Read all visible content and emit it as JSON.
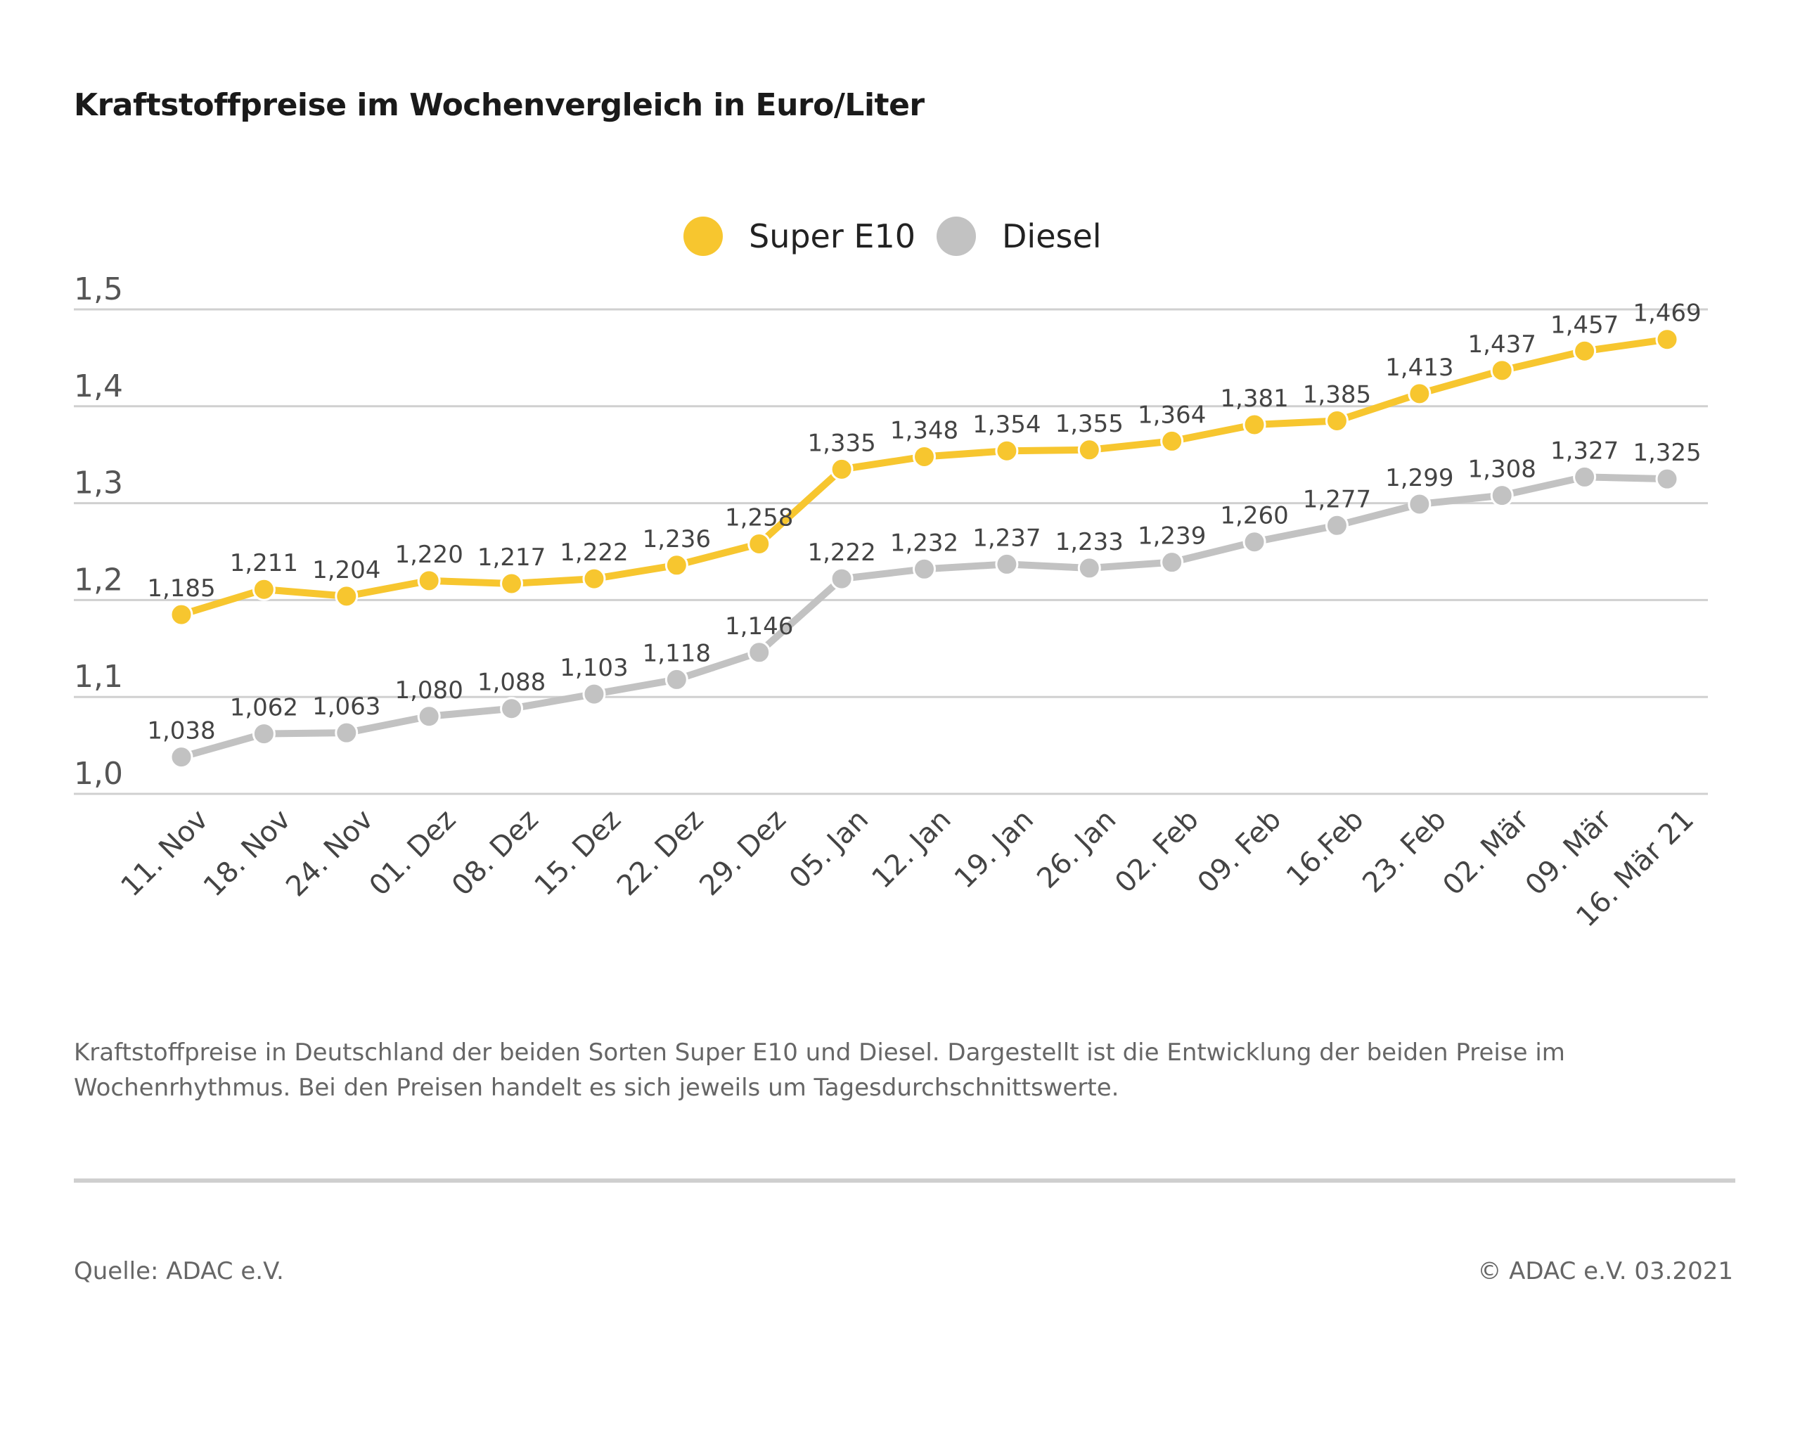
{
  "chart_data": {
    "type": "line",
    "title": "Kraftstoffpreise im Wochenvergleich in Euro/Liter",
    "categories": [
      "11. Nov",
      "18. Nov",
      "24. Nov",
      "01. Dez",
      "08. Dez",
      "15. Dez",
      "22. Dez",
      "29. Dez",
      "05. Jan",
      "12. Jan",
      "19. Jan",
      "26. Jan",
      "02. Feb",
      "09. Feb",
      "16.Feb",
      "23. Feb",
      "02. Mär",
      "09. Mär",
      "16. Mär 21"
    ],
    "series": [
      {
        "name": "Super E10",
        "color": "#f7c62f",
        "values": [
          1.185,
          1.211,
          1.204,
          1.22,
          1.217,
          1.222,
          1.236,
          1.258,
          1.335,
          1.348,
          1.354,
          1.355,
          1.364,
          1.381,
          1.385,
          1.413,
          1.437,
          1.457,
          1.469
        ]
      },
      {
        "name": "Diesel",
        "color": "#c2c2c2",
        "values": [
          1.038,
          1.062,
          1.063,
          1.08,
          1.088,
          1.103,
          1.118,
          1.146,
          1.222,
          1.232,
          1.237,
          1.233,
          1.239,
          1.26,
          1.277,
          1.299,
          1.308,
          1.327,
          1.325
        ]
      }
    ],
    "ylim": [
      1.0,
      1.5
    ],
    "yticks": [
      "1,0",
      "1,1",
      "1,2",
      "1,3",
      "1,4",
      "1,5"
    ],
    "grid": true,
    "legend": "top-center",
    "decimal_separator": ","
  },
  "caption": "Kraftstoffpreise in Deutschland der beiden Sorten Super E10 und Diesel. Dargestellt ist die Entwicklung der beiden Preise im Wochenrhythmus. Bei den Preisen handelt es sich jeweils um Tagesdurchschnittswerte.",
  "source": "Quelle: ADAC e.V.",
  "copyright": "© ADAC e.V. 03.2021"
}
